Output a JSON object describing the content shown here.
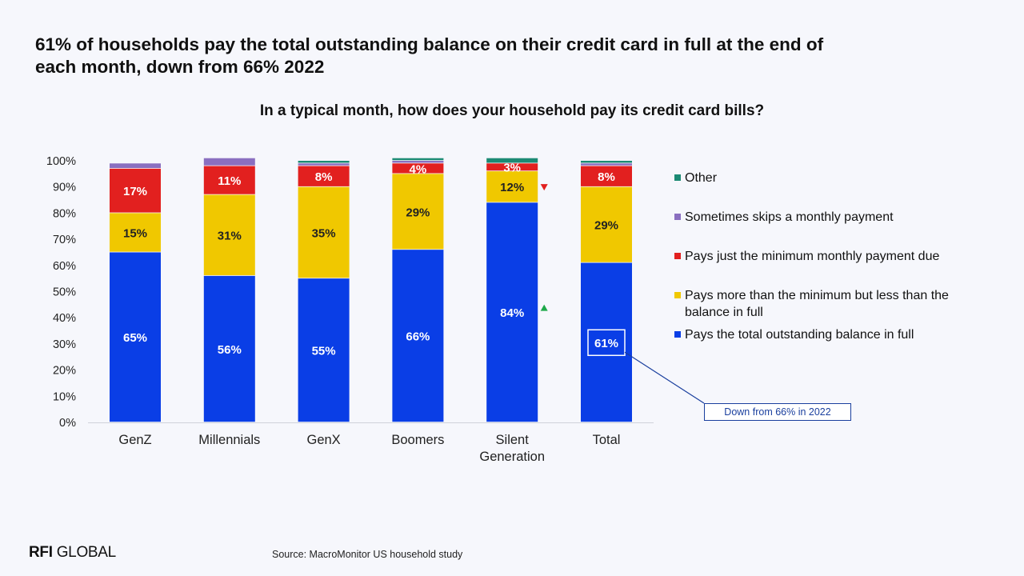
{
  "headline": "61% of households pay the total outstanding balance on their credit card in full at the end of each month, down from 66% 2022",
  "subtitle": "In a typical month, how does your household pay its credit card bills?",
  "source": "Source: MacroMonitor US household study",
  "logo": {
    "bold": "RFI",
    "rest": " GLOBAL"
  },
  "callout": "Down from 66% in 2022",
  "colors": {
    "pays_full": "#0a3ee6",
    "pays_more": "#f0c800",
    "pays_min": "#e2201f",
    "skips": "#8a6fc0",
    "other": "#1c8a74",
    "arrow_down": "#e2201f",
    "arrow_up": "#1ea84a",
    "callout": "#1a3f9e"
  },
  "chart_data": {
    "type": "bar",
    "stacked": true,
    "categories": [
      "GenZ",
      "Millennials",
      "GenX",
      "Boomers",
      "Silent Generation",
      "Total"
    ],
    "y_tick_labels": [
      "0%",
      "10%",
      "20%",
      "30%",
      "40%",
      "50%",
      "60%",
      "70%",
      "80%",
      "90%",
      "100%"
    ],
    "ylim": [
      0,
      100
    ],
    "legend_position": "right",
    "series": [
      {
        "name": "Pays the total outstanding balance in full",
        "color": "#0a3ee6",
        "values": [
          65,
          56,
          55,
          66,
          84,
          61
        ],
        "labels": [
          "65%",
          "56%",
          "55%",
          "66%",
          "84%",
          "61%"
        ]
      },
      {
        "name": "Pays more than the minimum but less than the balance in full",
        "color": "#f0c800",
        "values": [
          15,
          31,
          35,
          29,
          12,
          29
        ],
        "labels": [
          "15%",
          "31%",
          "35%",
          "29%",
          "12%",
          "29%"
        ]
      },
      {
        "name": "Pays just the minimum monthly payment due",
        "color": "#e2201f",
        "values": [
          17,
          11,
          8,
          4,
          3,
          8
        ],
        "labels": [
          "17%",
          "11%",
          "8%",
          "4%",
          "3%",
          "8%"
        ]
      },
      {
        "name": "Sometimes skips a monthly payment",
        "color": "#8a6fc0",
        "values": [
          2,
          3,
          1,
          1,
          0,
          1
        ],
        "labels": [
          "",
          "",
          "",
          "",
          "",
          ""
        ]
      },
      {
        "name": "Other",
        "color": "#1c8a74",
        "values": [
          0,
          0,
          1,
          1,
          2,
          1
        ],
        "labels": [
          "",
          "",
          "",
          "",
          "",
          ""
        ]
      }
    ],
    "legend_order": [
      "Other",
      "Sometimes skips a monthly payment",
      "Pays just the minimum monthly payment due",
      "Pays more than the minimum but less than the balance in full",
      "Pays the total outstanding balance in full"
    ],
    "annotations": [
      {
        "category": "Silent Generation",
        "series": "Pays more than the minimum but less than the balance in full",
        "marker": "down-arrow"
      },
      {
        "category": "Silent Generation",
        "series": "Pays the total outstanding balance in full",
        "marker": "up-arrow"
      },
      {
        "category": "Total",
        "series": "Pays the total outstanding balance in full",
        "marker": "callout-box",
        "text": "Down from 66% in 2022"
      }
    ]
  }
}
